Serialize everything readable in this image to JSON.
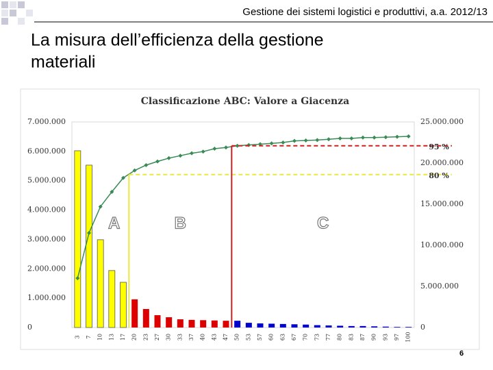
{
  "header": {
    "course": "Gestione dei sistemi logistici e produttivi, a.a. 2012/13",
    "title_lines": [
      "La misura dell’efficienza della gestione",
      "materiali"
    ],
    "page_number": "6"
  },
  "chart_data": {
    "type": "bar-line",
    "title": "Classificazione ABC: Valore a Giacenza",
    "categories": [
      "3",
      "7",
      "10",
      "13",
      "17",
      "20",
      "23",
      "27",
      "30",
      "33",
      "37",
      "40",
      "43",
      "47",
      "50",
      "53",
      "57",
      "60",
      "63",
      "67",
      "70",
      "73",
      "77",
      "80",
      "83",
      "87",
      "90",
      "93",
      "97",
      "100"
    ],
    "series": [
      {
        "type": "bar",
        "axis": "y",
        "values": [
          6020000,
          5530000,
          2990000,
          1940000,
          1540000,
          960000,
          630000,
          420000,
          350000,
          280000,
          260000,
          250000,
          240000,
          230000,
          230000,
          160000,
          140000,
          130000,
          120000,
          110000,
          100000,
          80000,
          70000,
          60000,
          50000,
          50000,
          40000,
          30000,
          20000,
          20000
        ],
        "colors": [
          "#ffff00",
          "#ffff00",
          "#ffff00",
          "#ffff00",
          "#ffff00",
          "#dd0000",
          "#dd0000",
          "#dd0000",
          "#dd0000",
          "#dd0000",
          "#dd0000",
          "#dd0000",
          "#dd0000",
          "#dd0000",
          "#0000cc",
          "#0000cc",
          "#0000cc",
          "#0000cc",
          "#0000cc",
          "#0000cc",
          "#0000cc",
          "#0000cc",
          "#0000cc",
          "#0000cc",
          "#0000cc",
          "#0000cc",
          "#0000cc",
          "#0000cc",
          "#0000cc",
          "#0000cc"
        ]
      },
      {
        "type": "line",
        "axis": "y2",
        "color": "#3a8a55",
        "values": [
          6000000,
          11500000,
          14700000,
          16500000,
          18200000,
          19100000,
          19750000,
          20200000,
          20600000,
          20900000,
          21200000,
          21400000,
          21750000,
          21900000,
          22100000,
          22200000,
          22300000,
          22400000,
          22500000,
          22700000,
          22750000,
          22800000,
          22900000,
          23000000,
          23000000,
          23100000,
          23100000,
          23150000,
          23200000,
          23250000
        ]
      }
    ],
    "ylim": [
      0,
      7000000
    ],
    "yticks": [
      {
        "value": 0,
        "label": "0"
      },
      {
        "value": 1000000,
        "label": "1.000.000"
      },
      {
        "value": 2000000,
        "label": "2.000.000"
      },
      {
        "value": 3000000,
        "label": "3.000.000"
      },
      {
        "value": 4000000,
        "label": "4.000.000"
      },
      {
        "value": 5000000,
        "label": "5.000.000"
      },
      {
        "value": 6000000,
        "label": "6.000.000"
      },
      {
        "value": 7000000,
        "label": "7.000.000"
      }
    ],
    "y2lim": [
      0,
      25000000
    ],
    "y2ticks": [
      {
        "value": 0,
        "label": "0"
      },
      {
        "value": 5000000,
        "label": "5.000.000"
      },
      {
        "value": 10000000,
        "label": "10.000.000"
      },
      {
        "value": 15000000,
        "label": "15.000.000"
      },
      {
        "value": 20000000,
        "label": "20.000.000"
      },
      {
        "value": 25000000,
        "label": "25.000.000"
      }
    ],
    "thresholds": [
      {
        "label": "80 %",
        "value": 18600000,
        "color": "#e8e840",
        "category": "17"
      },
      {
        "label": "95 %",
        "value": 22100000,
        "color": "#cc2020",
        "category": "47"
      }
    ],
    "class_labels": [
      "A",
      "B",
      "C"
    ]
  }
}
